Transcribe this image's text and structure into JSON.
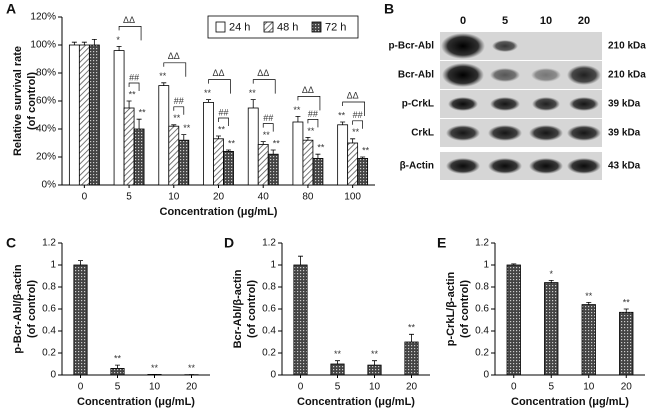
{
  "chart_data": [
    {
      "type": "bar",
      "panel_label": "A",
      "ylabel": [
        "Relative survival rate",
        "(of control)"
      ],
      "xlabel": "Concentration (μg/mL)",
      "categories": [
        "0",
        "5",
        "10",
        "20",
        "40",
        "80",
        "100"
      ],
      "series": [
        {
          "name": "24 h",
          "color": "#ffffff",
          "pattern": "none",
          "values": [
            100,
            96,
            71,
            59,
            55,
            45,
            43
          ],
          "errors": [
            2,
            3,
            2,
            2,
            6,
            4,
            2
          ],
          "sig_labels": [
            null,
            "*",
            "**",
            "**",
            "**",
            "**",
            "**"
          ]
        },
        {
          "name": "48 h",
          "color": "#666666",
          "pattern": "hatch",
          "values": [
            100,
            55,
            42,
            33,
            29,
            32,
            30
          ],
          "errors": [
            2,
            5,
            1,
            2,
            2,
            2,
            3
          ],
          "sig_labels": [
            null,
            "**",
            "**",
            "**",
            "**",
            "**",
            "**"
          ]
        },
        {
          "name": "72 h",
          "color": "#333333",
          "pattern": "cross",
          "values": [
            100,
            40,
            32,
            24,
            22,
            19,
            19
          ],
          "errors": [
            4,
            7,
            4,
            1,
            3,
            3,
            1
          ],
          "sig_labels": [
            null,
            "**",
            "**",
            "**",
            "**",
            "**",
            "**"
          ]
        }
      ],
      "hash_labels": [
        null,
        "##",
        "##",
        "##",
        "##",
        "##",
        "##"
      ],
      "delta_labels": [
        null,
        "ΔΔ",
        "ΔΔ",
        "ΔΔ",
        "ΔΔ",
        "ΔΔ",
        "ΔΔ"
      ],
      "ylim": [
        0,
        120
      ],
      "yticks": [
        {
          "value": 0,
          "label": "0%"
        },
        {
          "value": 20,
          "label": "20%"
        },
        {
          "value": 40,
          "label": "40%"
        },
        {
          "value": 60,
          "label": "60%"
        },
        {
          "value": 80,
          "label": "80%"
        },
        {
          "value": 100,
          "label": "100%"
        },
        {
          "value": 120,
          "label": "120%"
        }
      ],
      "legend": "top-right"
    },
    {
      "type": "bar",
      "panel_label": "C",
      "ylabel": [
        "p-Bcr-Abl/β-actin",
        "(of control)"
      ],
      "xlabel": "Concentration (μg/mL)",
      "categories": [
        "0",
        "5",
        "10",
        "20"
      ],
      "values": [
        1,
        0.06,
        0.005,
        0.003
      ],
      "errors": [
        0.04,
        0.03,
        0,
        0
      ],
      "sig_labels": [
        null,
        "**",
        "**",
        "**"
      ],
      "color": "#333333",
      "pattern": "cross",
      "ylim": [
        0,
        1.2
      ],
      "yticks": [
        0,
        0.2,
        0.4,
        0.6,
        0.8,
        1,
        1.2
      ]
    },
    {
      "type": "bar",
      "panel_label": "D",
      "ylabel": [
        "Bcr-Abl/β-actin",
        "(of control)"
      ],
      "xlabel": "Concentration (μg/mL)",
      "categories": [
        "0",
        "5",
        "10",
        "20"
      ],
      "values": [
        1,
        0.1,
        0.09,
        0.3
      ],
      "errors": [
        0.08,
        0.03,
        0.04,
        0.07
      ],
      "sig_labels": [
        null,
        "**",
        "**",
        "**"
      ],
      "color": "#333333",
      "pattern": "cross",
      "ylim": [
        0,
        1.2
      ],
      "yticks": [
        0,
        0.2,
        0.4,
        0.6,
        0.8,
        1,
        1.2
      ]
    },
    {
      "type": "bar",
      "panel_label": "E",
      "ylabel": [
        "p-CrkL/β-actin",
        "(of control)"
      ],
      "xlabel": "Concentration (μg/mL)",
      "categories": [
        "0",
        "5",
        "10",
        "20"
      ],
      "values": [
        1,
        0.84,
        0.64,
        0.57
      ],
      "errors": [
        0.01,
        0.02,
        0.02,
        0.03
      ],
      "sig_labels": [
        null,
        "*",
        "**",
        "**"
      ],
      "color": "#333333",
      "pattern": "cross",
      "ylim": [
        0,
        1.2
      ],
      "yticks": [
        0,
        0.2,
        0.4,
        0.6,
        0.8,
        1,
        1.2
      ]
    }
  ],
  "blot": {
    "panel_label": "B",
    "doses": [
      "0",
      "5",
      "10",
      "20"
    ],
    "rows": [
      {
        "name": "p-Bcr-Abl",
        "size": "210 kDa"
      },
      {
        "name": "Bcr-Abl",
        "size": "210 kDa"
      },
      {
        "name": "p-CrkL",
        "size": "39 kDa"
      },
      {
        "name": "CrkL",
        "size": "39 kDa"
      },
      {
        "name": "β-Actin",
        "size": "43 kDa"
      }
    ]
  }
}
